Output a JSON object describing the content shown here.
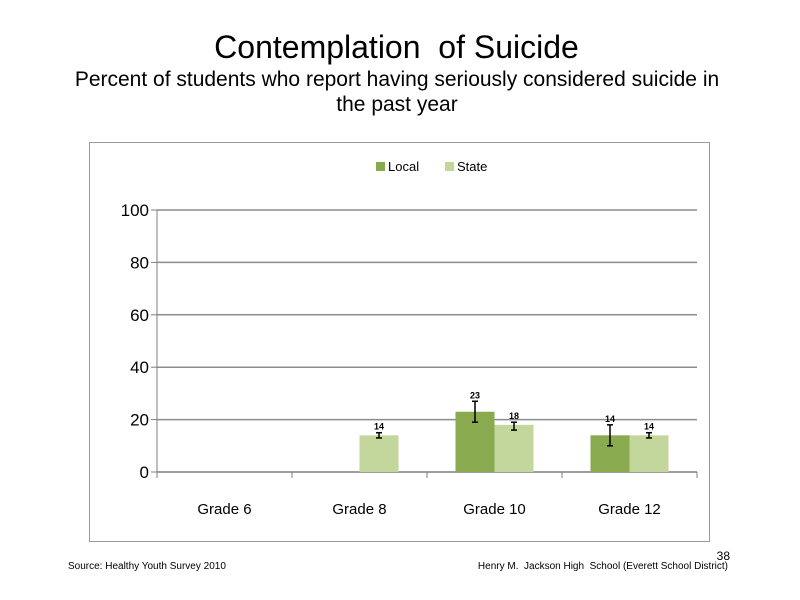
{
  "slide": {
    "title": "Contemplation  of Suicide",
    "subtitle": "Percent of students who report having seriously considered suicide in the past year",
    "source": "Source: Healthy Youth Survey 2010",
    "school": "Henry M.  Jackson High  School (Everett School District)",
    "page_number": "38"
  },
  "chart_data": {
    "type": "bar",
    "categories": [
      "Grade 6",
      "Grade 8",
      "Grade 10",
      "Grade 12"
    ],
    "series": [
      {
        "name": "Local",
        "color": "#8aaa4f",
        "values": [
          null,
          null,
          23,
          14
        ],
        "labels": [
          null,
          null,
          "23",
          "14"
        ],
        "error_low": [
          null,
          null,
          19,
          10
        ],
        "error_high": [
          null,
          null,
          27,
          18
        ]
      },
      {
        "name": "State",
        "color": "#c3d69b",
        "values": [
          null,
          14,
          18,
          14
        ],
        "labels": [
          null,
          "14",
          "18",
          "14"
        ],
        "error_low": [
          null,
          13,
          16,
          13
        ],
        "error_high": [
          null,
          15,
          19,
          15
        ]
      }
    ],
    "ylim": [
      0,
      100
    ],
    "yticks": [
      "0",
      "20",
      "40",
      "60",
      "80",
      "100"
    ],
    "ytick_values": [
      0,
      20,
      40,
      60,
      80,
      100
    ],
    "grid": true,
    "gridline_color": "#8c8c8c",
    "axis_color": "#7f7f7f",
    "legend_position": "top-center"
  }
}
